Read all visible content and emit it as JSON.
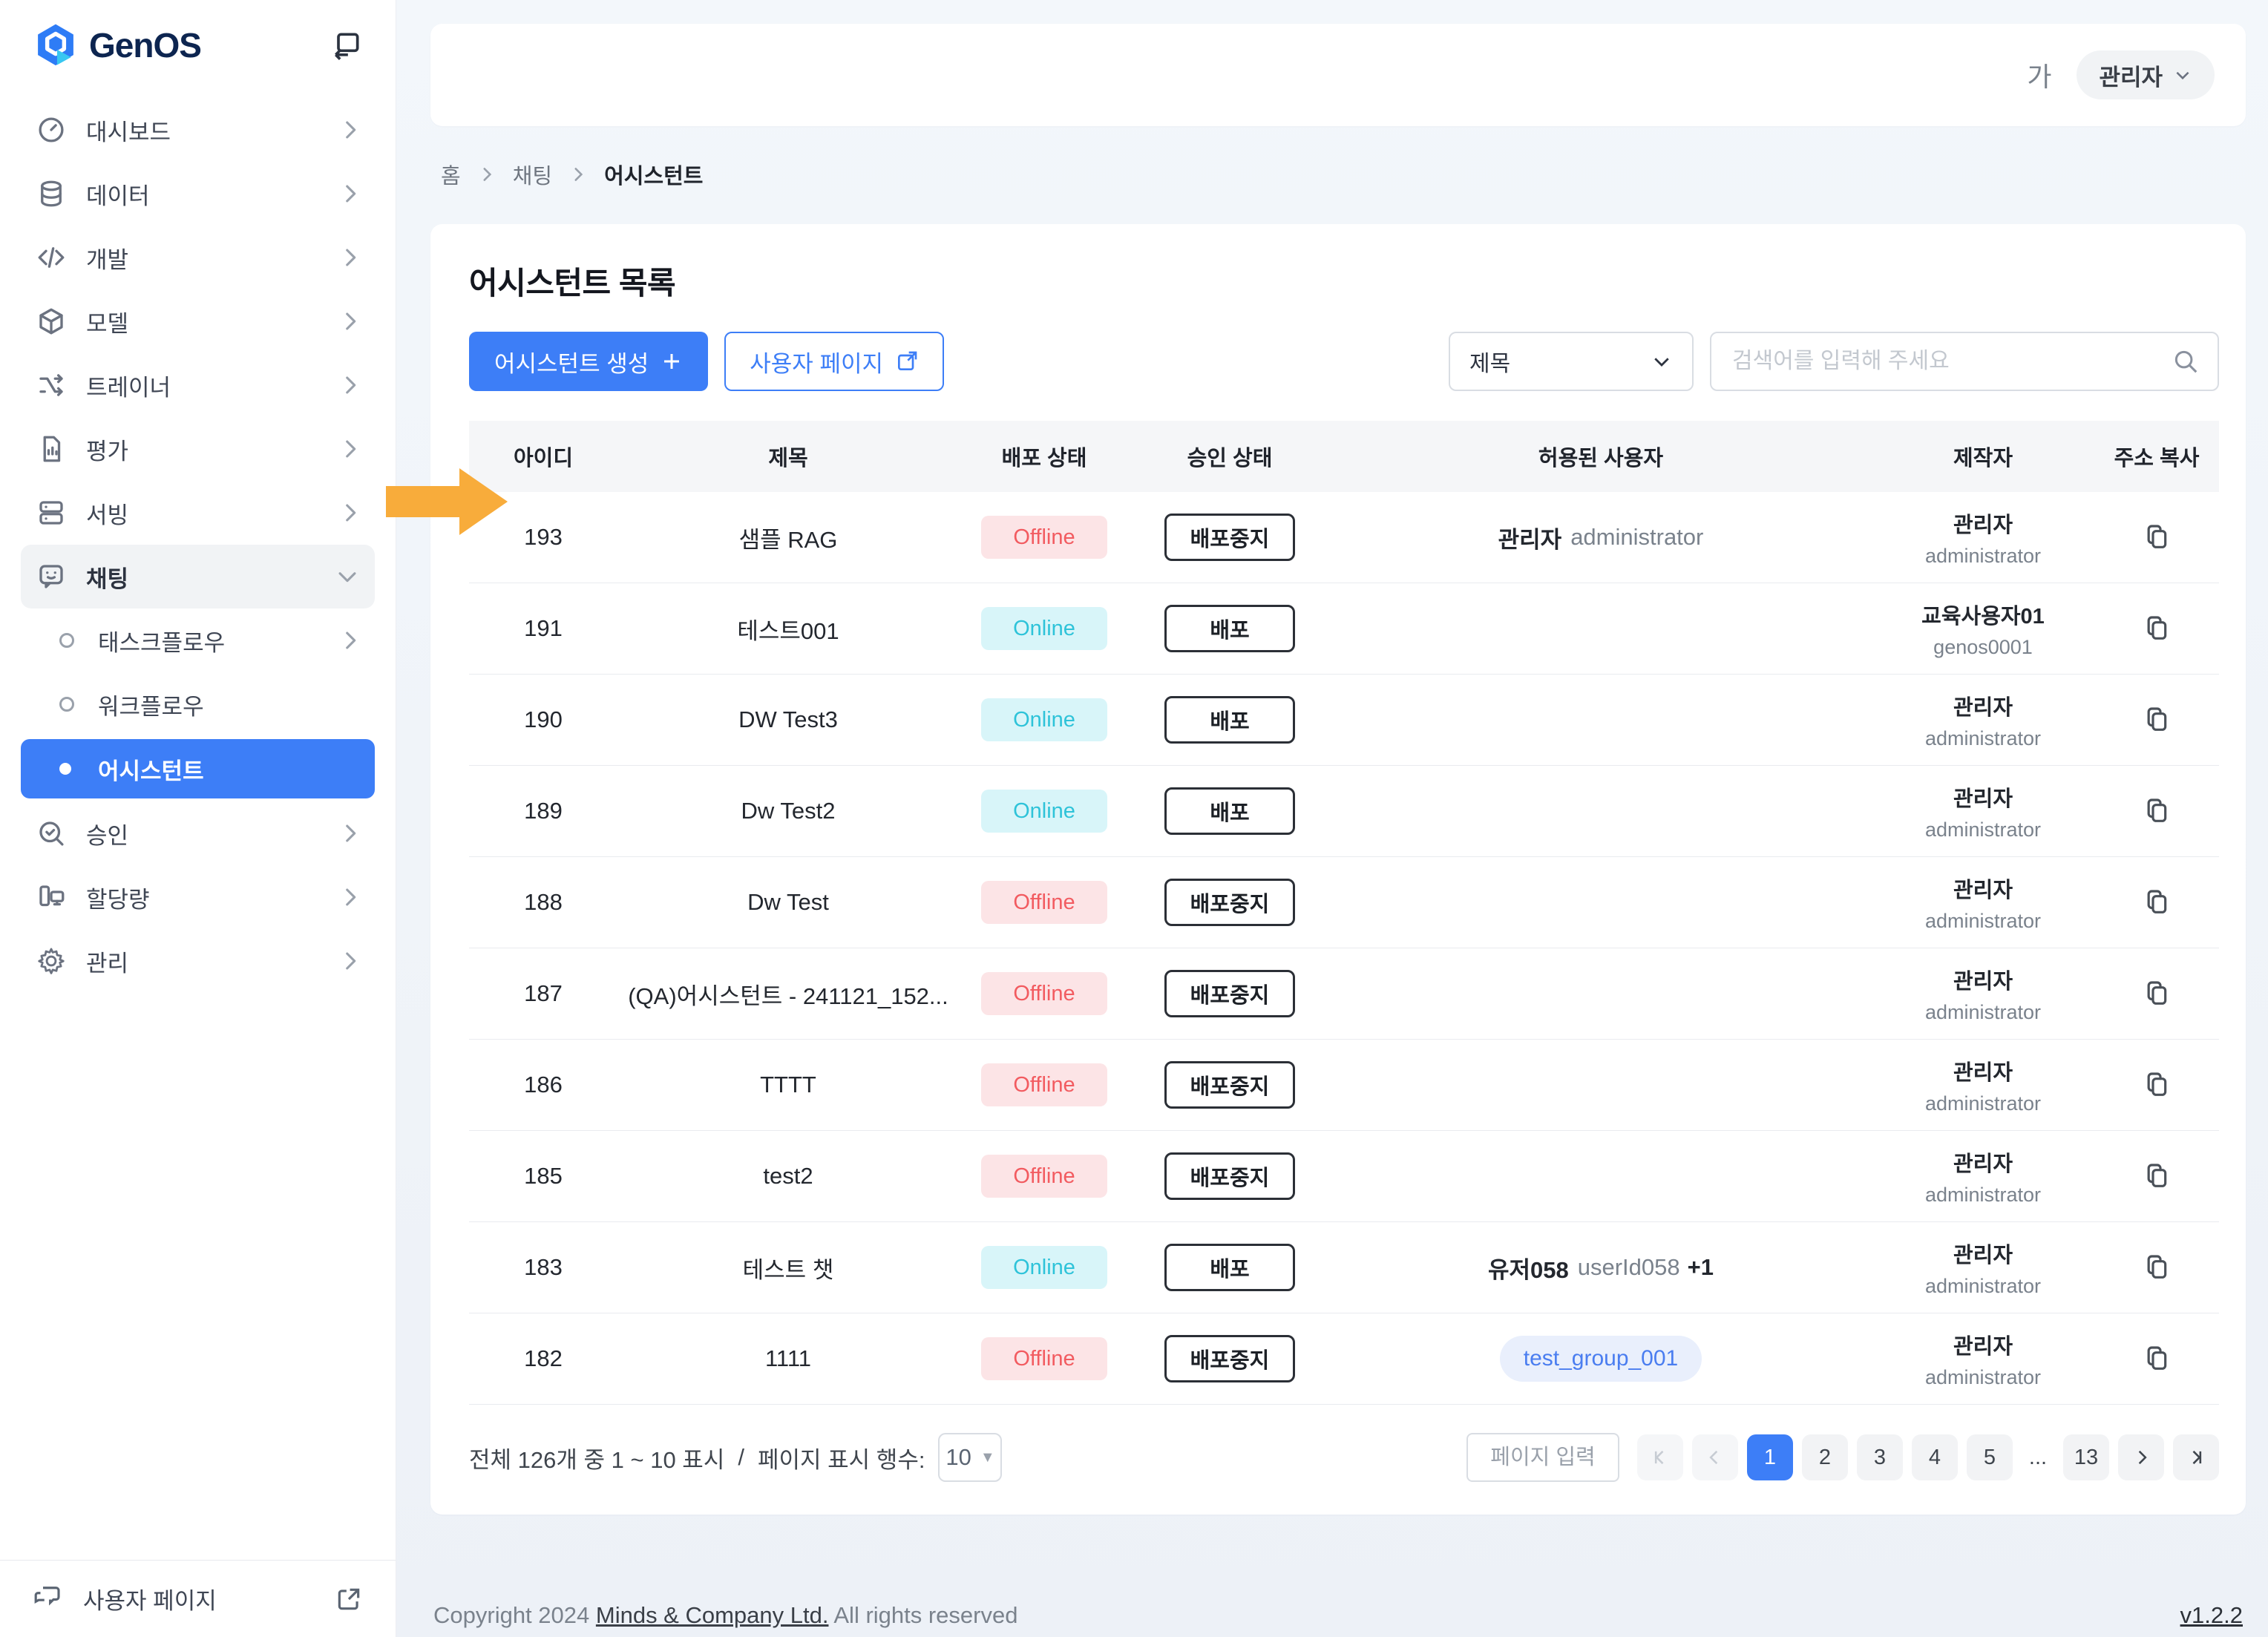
{
  "brand": {
    "name": "GenOS"
  },
  "topbar": {
    "font_size_label": "가",
    "user_menu": "관리자"
  },
  "sidebar": {
    "items": [
      {
        "label": "대시보드",
        "icon": "gauge",
        "chevron": true
      },
      {
        "label": "데이터",
        "icon": "database",
        "chevron": true
      },
      {
        "label": "개발",
        "icon": "code",
        "chevron": true
      },
      {
        "label": "모델",
        "icon": "cube",
        "chevron": true
      },
      {
        "label": "트레이너",
        "icon": "trainer",
        "chevron": true
      },
      {
        "label": "평가",
        "icon": "doc-chart",
        "chevron": true
      },
      {
        "label": "서빙",
        "icon": "server",
        "chevron": true
      },
      {
        "label": "채팅",
        "icon": "chat",
        "expanded": true,
        "children": [
          {
            "label": "태스크플로우",
            "chevron": true
          },
          {
            "label": "워크플로우",
            "chevron": false
          },
          {
            "label": "어시스턴트",
            "active": true
          }
        ]
      },
      {
        "label": "승인",
        "icon": "search-check",
        "chevron": true
      },
      {
        "label": "할당량",
        "icon": "devices",
        "chevron": true
      },
      {
        "label": "관리",
        "icon": "gear",
        "chevron": true
      }
    ],
    "footer_link": "사용자 페이지"
  },
  "breadcrumb": [
    "홈",
    "채팅",
    "어시스턴트"
  ],
  "page": {
    "title": "어시스턴트 목록",
    "create_button": "어시스턴트 생성",
    "user_page_button": "사용자 페이지",
    "filter_select": "제목",
    "search_placeholder": "검색어를 입력해 주세요"
  },
  "table": {
    "headers": [
      "아이디",
      "제목",
      "배포 상태",
      "승인 상태",
      "허용된 사용자",
      "제작자",
      "주소 복사"
    ],
    "rows": [
      {
        "id": "193",
        "title": "샘플 RAG",
        "deploy_status": "Offline",
        "approval": "배포중지",
        "allowed_user": {
          "name": "관리자",
          "id": "administrator"
        },
        "creator": {
          "name": "관리자",
          "id": "administrator"
        },
        "highlighted": true
      },
      {
        "id": "191",
        "title": "테스트001",
        "deploy_status": "Online",
        "approval": "배포",
        "creator": {
          "name": "교육사용자01",
          "id": "genos0001"
        }
      },
      {
        "id": "190",
        "title": "DW Test3",
        "deploy_status": "Online",
        "approval": "배포",
        "creator": {
          "name": "관리자",
          "id": "administrator"
        }
      },
      {
        "id": "189",
        "title": "Dw Test2",
        "deploy_status": "Online",
        "approval": "배포",
        "creator": {
          "name": "관리자",
          "id": "administrator"
        }
      },
      {
        "id": "188",
        "title": "Dw Test",
        "deploy_status": "Offline",
        "approval": "배포중지",
        "creator": {
          "name": "관리자",
          "id": "administrator"
        }
      },
      {
        "id": "187",
        "title": "(QA)어시스턴트 - 241121_152...",
        "deploy_status": "Offline",
        "approval": "배포중지",
        "creator": {
          "name": "관리자",
          "id": "administrator"
        }
      },
      {
        "id": "186",
        "title": "TTTT",
        "deploy_status": "Offline",
        "approval": "배포중지",
        "creator": {
          "name": "관리자",
          "id": "administrator"
        }
      },
      {
        "id": "185",
        "title": "test2",
        "deploy_status": "Offline",
        "approval": "배포중지",
        "creator": {
          "name": "관리자",
          "id": "administrator"
        }
      },
      {
        "id": "183",
        "title": "테스트 챗",
        "deploy_status": "Online",
        "approval": "배포",
        "allowed_user": {
          "name": "유저058",
          "id": "userId058",
          "extra": "+1"
        },
        "creator": {
          "name": "관리자",
          "id": "administrator"
        }
      },
      {
        "id": "182",
        "title": "1111",
        "deploy_status": "Offline",
        "approval": "배포중지",
        "allowed_group": "test_group_001",
        "creator": {
          "name": "관리자",
          "id": "administrator"
        }
      }
    ]
  },
  "pagination": {
    "summary": "전체 126개 중 1 ~ 10 표시",
    "separator": "/",
    "rows_per_page_label": "페이지 표시 행수:",
    "rows_per_page": "10",
    "page_input_placeholder": "페이지 입력",
    "pages": [
      "1",
      "2",
      "3",
      "4",
      "5"
    ],
    "ellipsis": "...",
    "last_page": "13",
    "current_page": "1"
  },
  "footer": {
    "copyright_prefix": "Copyright 2024",
    "company": "Minds & Company Ltd.",
    "copyright_suffix": "All rights reserved",
    "version": "v1.2.2"
  },
  "colors": {
    "primary": "#3D7EF7",
    "arrow": "#F8AC3B",
    "online_bg": "#D8F5F9",
    "online_text": "#2EC3D9",
    "offline_bg": "#FCE4E6",
    "offline_text": "#F25B60",
    "group_bg": "#E9EFFC",
    "group_text": "#4A7DF0"
  }
}
